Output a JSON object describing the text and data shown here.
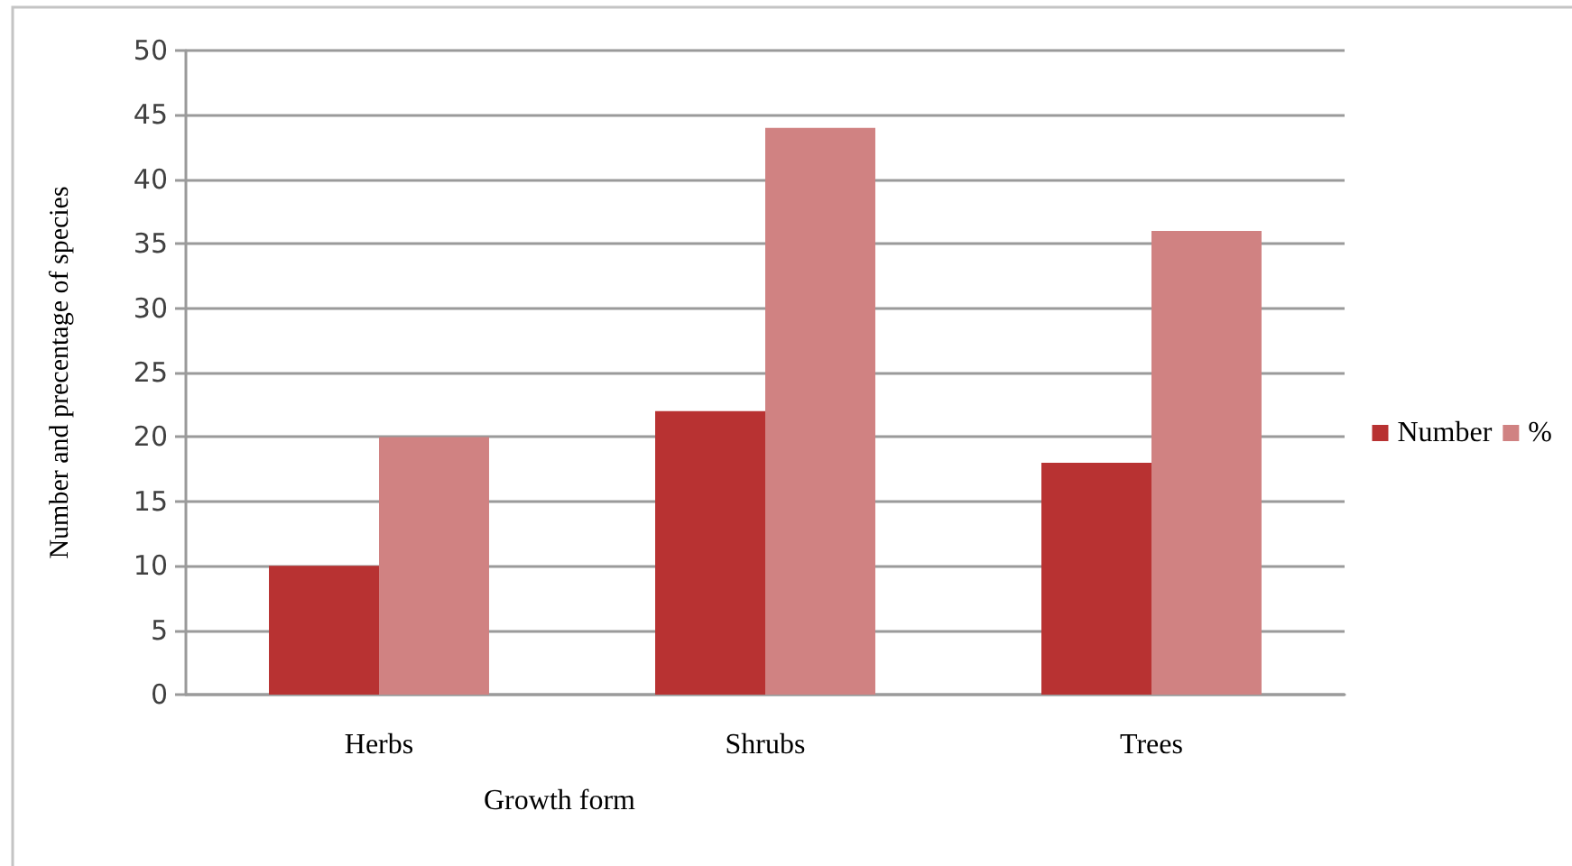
{
  "chart_data": {
    "type": "bar",
    "xlabel": "Growth form",
    "ylabel": "Number and precentage of species",
    "categories": [
      "Herbs",
      "Shrubs",
      "Trees"
    ],
    "series": [
      {
        "name": "Number",
        "color": "#b83232",
        "values": [
          10,
          22,
          18
        ]
      },
      {
        "name": "%",
        "color": "#d08282",
        "values": [
          20,
          44,
          36
        ]
      }
    ],
    "ylim": [
      0,
      50
    ],
    "yticks": [
      0,
      5,
      10,
      15,
      20,
      25,
      30,
      35,
      40,
      45,
      50
    ],
    "grid": "y",
    "legend": "right"
  }
}
